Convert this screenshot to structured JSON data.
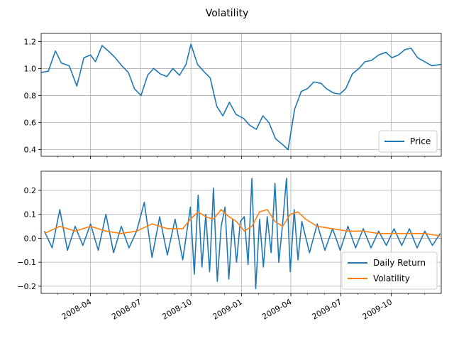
{
  "title": "Volatility",
  "colors": {
    "price": "#1f77b4",
    "daily_return": "#1f77b4",
    "volatility": "#ff7f0e",
    "grid": "#b0b0b0"
  },
  "chart_data": [
    {
      "type": "line",
      "title": "",
      "xlabel": "",
      "ylabel": "",
      "x_range": [
        "2008-01-02",
        "2009-12-31"
      ],
      "ylim": [
        0.35,
        1.26
      ],
      "y_ticks": [
        "0.4",
        "0.6",
        "0.8",
        "1.0",
        "1.2"
      ],
      "grid": true,
      "legend": "lower-right",
      "series": [
        {
          "name": "Price",
          "x": [
            "2008-01-02",
            "2008-01-15",
            "2008-01-28",
            "2008-02-08",
            "2008-02-22",
            "2008-03-07",
            "2008-03-20",
            "2008-04-01",
            "2008-04-10",
            "2008-04-22",
            "2008-05-06",
            "2008-05-16",
            "2008-05-28",
            "2008-06-09",
            "2008-06-20",
            "2008-07-02",
            "2008-07-14",
            "2008-07-25",
            "2008-08-06",
            "2008-08-18",
            "2008-08-29",
            "2008-09-10",
            "2008-09-22",
            "2008-10-01",
            "2008-10-13",
            "2008-10-24",
            "2008-11-05",
            "2008-11-17",
            "2008-11-28",
            "2008-12-10",
            "2008-12-22",
            "2009-01-05",
            "2009-01-16",
            "2009-01-28",
            "2009-02-09",
            "2009-02-20",
            "2009-03-04",
            "2009-03-16",
            "2009-03-27",
            "2009-04-08",
            "2009-04-20",
            "2009-05-01",
            "2009-05-13",
            "2009-05-26",
            "2009-06-05",
            "2009-06-17",
            "2009-06-29",
            "2009-07-10",
            "2009-07-22",
            "2009-08-03",
            "2009-08-14",
            "2009-08-26",
            "2009-09-08",
            "2009-09-21",
            "2009-10-02",
            "2009-10-14",
            "2009-10-26",
            "2009-11-06",
            "2009-11-18",
            "2009-12-01",
            "2009-12-14",
            "2009-12-31"
          ],
          "values": [
            0.97,
            0.98,
            1.13,
            1.04,
            1.02,
            0.87,
            1.08,
            1.1,
            1.05,
            1.17,
            1.12,
            1.08,
            1.02,
            0.97,
            0.85,
            0.8,
            0.95,
            1.0,
            0.96,
            0.94,
            1.0,
            0.95,
            1.03,
            1.18,
            1.03,
            0.98,
            0.93,
            0.72,
            0.65,
            0.75,
            0.66,
            0.63,
            0.58,
            0.55,
            0.65,
            0.6,
            0.48,
            0.44,
            0.4,
            0.7,
            0.83,
            0.85,
            0.9,
            0.89,
            0.85,
            0.82,
            0.81,
            0.85,
            0.96,
            1.0,
            1.05,
            1.06,
            1.1,
            1.12,
            1.08,
            1.1,
            1.14,
            1.15,
            1.08,
            1.05,
            1.02,
            1.03
          ]
        }
      ]
    },
    {
      "type": "line",
      "title": "",
      "xlabel": "",
      "ylabel": "",
      "x_range": [
        "2008-01-02",
        "2009-12-31"
      ],
      "ylim": [
        -0.23,
        0.28
      ],
      "y_ticks": [
        "−0.2",
        "−0.1",
        "0.0",
        "0.1",
        "0.2"
      ],
      "x_ticks": [
        "2008-04",
        "2008-07",
        "2008-10",
        "2009-01",
        "2009-04",
        "2009-07",
        "2009-10"
      ],
      "grid": true,
      "legend": "lower-right",
      "series": [
        {
          "name": "Daily Return",
          "x": [
            "2008-01-08",
            "2008-01-22",
            "2008-02-05",
            "2008-02-19",
            "2008-03-04",
            "2008-03-18",
            "2008-04-01",
            "2008-04-15",
            "2008-04-29",
            "2008-05-13",
            "2008-05-27",
            "2008-06-10",
            "2008-06-24",
            "2008-07-08",
            "2008-07-22",
            "2008-08-05",
            "2008-08-19",
            "2008-09-02",
            "2008-09-16",
            "2008-09-30",
            "2008-10-07",
            "2008-10-14",
            "2008-10-21",
            "2008-10-28",
            "2008-11-04",
            "2008-11-11",
            "2008-11-18",
            "2008-11-25",
            "2008-12-02",
            "2008-12-09",
            "2008-12-16",
            "2008-12-23",
            "2008-12-30",
            "2009-01-06",
            "2009-01-13",
            "2009-01-20",
            "2009-01-27",
            "2009-02-03",
            "2009-02-10",
            "2009-02-17",
            "2009-02-24",
            "2009-03-03",
            "2009-03-10",
            "2009-03-17",
            "2009-03-24",
            "2009-03-31",
            "2009-04-07",
            "2009-04-14",
            "2009-04-21",
            "2009-05-05",
            "2009-05-19",
            "2009-06-02",
            "2009-06-16",
            "2009-06-30",
            "2009-07-14",
            "2009-07-28",
            "2009-08-11",
            "2009-08-25",
            "2009-09-08",
            "2009-09-22",
            "2009-10-06",
            "2009-10-20",
            "2009-11-03",
            "2009-11-17",
            "2009-12-01",
            "2009-12-15",
            "2009-12-29"
          ],
          "values": [
            0.03,
            -0.04,
            0.12,
            -0.05,
            0.05,
            -0.03,
            0.06,
            -0.05,
            0.1,
            -0.06,
            0.05,
            -0.04,
            0.03,
            0.15,
            -0.08,
            0.09,
            -0.07,
            0.08,
            -0.09,
            0.13,
            -0.15,
            0.18,
            -0.12,
            0.1,
            -0.14,
            0.21,
            -0.18,
            0.05,
            0.13,
            -0.17,
            0.08,
            -0.1,
            0.07,
            0.09,
            -0.11,
            0.25,
            -0.21,
            0.08,
            -0.12,
            0.09,
            -0.06,
            0.23,
            -0.1,
            0.06,
            0.25,
            -0.14,
            0.12,
            -0.09,
            0.07,
            -0.06,
            0.06,
            -0.05,
            0.04,
            -0.05,
            0.05,
            -0.04,
            0.04,
            -0.04,
            0.03,
            -0.03,
            0.04,
            -0.03,
            0.04,
            -0.04,
            0.03,
            -0.03,
            0.02
          ]
        },
        {
          "name": "Volatility",
          "x": [
            "2008-01-08",
            "2008-02-05",
            "2008-03-04",
            "2008-04-01",
            "2008-04-29",
            "2008-05-27",
            "2008-06-24",
            "2008-07-22",
            "2008-08-19",
            "2008-09-16",
            "2008-09-30",
            "2008-10-14",
            "2008-10-28",
            "2008-11-11",
            "2008-11-25",
            "2008-12-09",
            "2008-12-23",
            "2009-01-06",
            "2009-01-20",
            "2009-02-03",
            "2009-02-17",
            "2009-03-03",
            "2009-03-17",
            "2009-03-31",
            "2009-04-14",
            "2009-04-28",
            "2009-05-19",
            "2009-06-16",
            "2009-07-14",
            "2009-08-11",
            "2009-09-08",
            "2009-10-06",
            "2009-11-03",
            "2009-12-01",
            "2009-12-29"
          ],
          "values": [
            0.02,
            0.05,
            0.03,
            0.05,
            0.03,
            0.02,
            0.03,
            0.06,
            0.04,
            0.04,
            0.08,
            0.11,
            0.09,
            0.08,
            0.12,
            0.09,
            0.07,
            0.03,
            0.05,
            0.11,
            0.12,
            0.07,
            0.05,
            0.1,
            0.11,
            0.08,
            0.05,
            0.04,
            0.03,
            0.03,
            0.02,
            0.02,
            0.02,
            0.02,
            0.01
          ]
        }
      ]
    }
  ]
}
